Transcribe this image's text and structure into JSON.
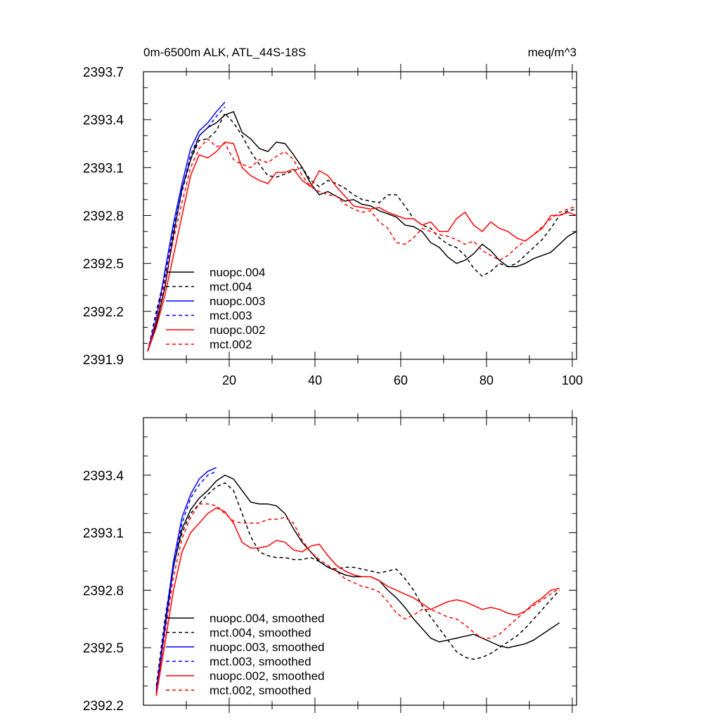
{
  "chart_data": [
    {
      "type": "line",
      "title_left": "0m-6500m ALK, ATL_44S-18S",
      "title_right": "meq/m^3",
      "xlabel": "",
      "ylabel": "",
      "xlim": [
        0,
        101
      ],
      "ylim": [
        2391.9,
        2393.7
      ],
      "xticks": [
        "20",
        "40",
        "60",
        "80",
        "100"
      ],
      "yticks": [
        "2391.9",
        "2392.2",
        "2392.5",
        "2392.8",
        "2393.1",
        "2393.4",
        "2393.7"
      ],
      "legend_position": "lower-left",
      "series": [
        {
          "name": "nuopc.004",
          "color": "#000000",
          "dash": "solid",
          "x": [
            1,
            3,
            5,
            7,
            9,
            11,
            13,
            15,
            17,
            19,
            21,
            23,
            25,
            27,
            29,
            31,
            33,
            35,
            37,
            39,
            41,
            43,
            45,
            47,
            49,
            51,
            53,
            55,
            57,
            59,
            61,
            63,
            65,
            67,
            69,
            71,
            73,
            75,
            77,
            79,
            81,
            83,
            85,
            87,
            89,
            91,
            93,
            95,
            97,
            99,
            101
          ],
          "y": [
            2391.95,
            2392.12,
            2392.35,
            2392.68,
            2392.97,
            2393.15,
            2393.3,
            2393.35,
            2393.38,
            2393.43,
            2393.45,
            2393.32,
            2393.28,
            2393.22,
            2393.2,
            2393.26,
            2393.25,
            2393.18,
            2393.1,
            2393.0,
            2392.93,
            2392.95,
            2392.92,
            2392.89,
            2392.9,
            2392.87,
            2392.86,
            2392.83,
            2392.81,
            2392.79,
            2392.74,
            2392.73,
            2392.7,
            2392.63,
            2392.6,
            2392.54,
            2392.5,
            2392.52,
            2392.56,
            2392.62,
            2392.58,
            2392.52,
            2392.48,
            2392.48,
            2392.5,
            2392.53,
            2392.55,
            2392.57,
            2392.62,
            2392.67,
            2392.7
          ]
        },
        {
          "name": "mct.004",
          "color": "#000000",
          "dash": "dashed",
          "x": [
            1,
            3,
            5,
            7,
            9,
            11,
            13,
            15,
            17,
            19,
            21,
            23,
            25,
            27,
            29,
            31,
            33,
            35,
            37,
            39,
            41,
            43,
            45,
            47,
            49,
            51,
            53,
            55,
            57,
            59,
            61,
            63,
            65,
            67,
            69,
            71,
            73,
            75,
            77,
            79,
            81,
            83,
            85,
            87,
            89,
            91,
            93,
            95,
            97,
            99,
            101
          ],
          "y": [
            2391.95,
            2392.2,
            2392.42,
            2392.7,
            2392.95,
            2393.15,
            2393.27,
            2393.28,
            2393.33,
            2393.44,
            2393.38,
            2393.3,
            2393.2,
            2393.12,
            2393.05,
            2393.04,
            2393.06,
            2393.08,
            2393.1,
            2393.02,
            2392.98,
            2393.02,
            2393.0,
            2392.97,
            2392.93,
            2392.9,
            2392.89,
            2392.88,
            2392.93,
            2392.93,
            2392.86,
            2392.78,
            2392.74,
            2392.72,
            2392.66,
            2392.62,
            2392.6,
            2392.55,
            2392.47,
            2392.42,
            2392.45,
            2392.5,
            2392.48,
            2392.5,
            2392.55,
            2392.6,
            2392.65,
            2392.72,
            2392.8,
            2392.83,
            2392.84
          ]
        },
        {
          "name": "nuopc.003",
          "color": "#0000ff",
          "dash": "solid",
          "x": [
            1,
            3,
            5,
            7,
            9,
            11,
            13,
            15,
            17,
            19
          ],
          "y": [
            2391.95,
            2392.15,
            2392.45,
            2392.75,
            2393.0,
            2393.22,
            2393.33,
            2393.38,
            2393.45,
            2393.51
          ]
        },
        {
          "name": "mct.003",
          "color": "#0000ff",
          "dash": "dashed",
          "x": [
            1,
            3,
            5,
            7,
            9,
            11,
            13,
            15,
            17,
            19
          ],
          "y": [
            2391.95,
            2392.18,
            2392.4,
            2392.72,
            2392.96,
            2393.18,
            2393.3,
            2393.35,
            2393.42,
            2393.48
          ]
        },
        {
          "name": "nuopc.002",
          "color": "#ff0000",
          "dash": "solid",
          "x": [
            1,
            3,
            5,
            7,
            9,
            11,
            13,
            15,
            17,
            19,
            21,
            23,
            25,
            27,
            29,
            31,
            33,
            35,
            37,
            39,
            41,
            43,
            45,
            47,
            49,
            51,
            53,
            55,
            57,
            59,
            61,
            63,
            65,
            67,
            69,
            71,
            73,
            75,
            77,
            79,
            81,
            83,
            85,
            87,
            89,
            91,
            93,
            95,
            97,
            99,
            101
          ],
          "y": [
            2391.95,
            2392.1,
            2392.3,
            2392.55,
            2392.8,
            2393.05,
            2393.18,
            2393.16,
            2393.2,
            2393.26,
            2393.25,
            2393.1,
            2393.05,
            2393.02,
            2393.0,
            2393.07,
            2393.07,
            2393.09,
            2393.02,
            2392.98,
            2393.08,
            2393.05,
            2392.98,
            2392.92,
            2392.86,
            2392.85,
            2392.84,
            2392.85,
            2392.82,
            2392.8,
            2392.78,
            2392.78,
            2392.74,
            2392.76,
            2392.7,
            2392.7,
            2392.78,
            2392.82,
            2392.74,
            2392.7,
            2392.76,
            2392.72,
            2392.7,
            2392.66,
            2392.64,
            2392.68,
            2392.72,
            2392.8,
            2392.8,
            2392.82,
            2392.8
          ]
        },
        {
          "name": "mct.002",
          "color": "#ff0000",
          "dash": "dashed",
          "x": [
            1,
            3,
            5,
            7,
            9,
            11,
            13,
            15,
            17,
            19,
            21,
            23,
            25,
            27,
            29,
            31,
            33,
            35,
            37,
            39,
            41,
            43,
            45,
            47,
            49,
            51,
            53,
            55,
            57,
            59,
            61,
            63,
            65,
            67,
            69,
            71,
            73,
            75,
            77,
            79,
            81,
            83,
            85,
            87,
            89,
            91,
            93,
            95,
            97,
            99,
            101
          ],
          "y": [
            2391.95,
            2392.15,
            2392.38,
            2392.65,
            2392.88,
            2393.1,
            2393.22,
            2393.28,
            2393.23,
            2393.25,
            2393.15,
            2393.12,
            2393.1,
            2393.15,
            2393.13,
            2393.17,
            2393.2,
            2393.15,
            2393.05,
            2392.98,
            2392.95,
            2392.93,
            2392.92,
            2392.87,
            2392.84,
            2392.82,
            2392.83,
            2392.76,
            2392.72,
            2392.63,
            2392.62,
            2392.66,
            2392.72,
            2392.7,
            2392.68,
            2392.67,
            2392.65,
            2392.62,
            2392.64,
            2392.58,
            2392.55,
            2392.52,
            2392.55,
            2392.6,
            2392.64,
            2392.68,
            2392.73,
            2392.78,
            2392.82,
            2392.84,
            2392.86
          ]
        }
      ]
    },
    {
      "type": "line",
      "xlabel": "",
      "ylabel": "",
      "xlim": [
        0,
        101
      ],
      "ylim": [
        2392.2,
        2393.7
      ],
      "xticks": [],
      "yticks": [
        "2392.2",
        "2392.5",
        "2392.8",
        "2393.1",
        "2393.4"
      ],
      "legend_position": "lower-left",
      "series": [
        {
          "name": "nuopc.004, smoothed",
          "color": "#000000",
          "dash": "solid",
          "x": [
            3,
            5,
            7,
            9,
            11,
            13,
            15,
            17,
            19,
            21,
            23,
            25,
            27,
            29,
            31,
            33,
            35,
            37,
            39,
            41,
            43,
            45,
            47,
            49,
            51,
            53,
            55,
            57,
            59,
            61,
            63,
            65,
            67,
            69,
            71,
            73,
            75,
            77,
            79,
            81,
            83,
            85,
            87,
            89,
            91,
            93,
            95,
            97
          ],
          "y": [
            2392.25,
            2392.6,
            2392.92,
            2393.12,
            2393.22,
            2393.28,
            2393.32,
            2393.37,
            2393.4,
            2393.38,
            2393.32,
            2393.26,
            2393.25,
            2393.25,
            2393.24,
            2393.2,
            2393.12,
            2393.05,
            2393.0,
            2392.95,
            2392.92,
            2392.9,
            2392.88,
            2392.87,
            2392.87,
            2392.87,
            2392.85,
            2392.8,
            2392.76,
            2392.71,
            2392.65,
            2392.6,
            2392.55,
            2392.53,
            2392.54,
            2392.55,
            2392.56,
            2392.57,
            2392.55,
            2392.53,
            2392.51,
            2392.5,
            2392.51,
            2392.52,
            2392.54,
            2392.57,
            2392.6,
            2392.63
          ]
        },
        {
          "name": "mct.004, smoothed",
          "color": "#000000",
          "dash": "dashed",
          "x": [
            3,
            5,
            7,
            9,
            11,
            13,
            15,
            17,
            19,
            21,
            23,
            25,
            27,
            29,
            31,
            33,
            35,
            37,
            39,
            41,
            43,
            45,
            47,
            49,
            51,
            53,
            55,
            57,
            59,
            61,
            63,
            65,
            67,
            69,
            71,
            73,
            75,
            77,
            79,
            81,
            83,
            85,
            87,
            89,
            91,
            93,
            95,
            97
          ],
          "y": [
            2392.3,
            2392.65,
            2392.93,
            2393.1,
            2393.2,
            2393.25,
            2393.3,
            2393.34,
            2393.36,
            2393.32,
            2393.2,
            2393.08,
            2393.0,
            2392.98,
            2392.97,
            2392.97,
            2392.96,
            2392.96,
            2392.97,
            2392.95,
            2392.92,
            2392.91,
            2392.92,
            2392.92,
            2392.91,
            2392.9,
            2392.89,
            2392.9,
            2392.91,
            2392.86,
            2392.8,
            2392.72,
            2392.66,
            2392.6,
            2392.54,
            2392.48,
            2392.45,
            2392.44,
            2392.45,
            2392.47,
            2392.5,
            2392.53,
            2392.56,
            2392.6,
            2392.65,
            2392.7,
            2392.75,
            2392.8
          ]
        },
        {
          "name": "nuopc.003, smoothed",
          "color": "#0000ff",
          "dash": "solid",
          "x": [
            3,
            5,
            7,
            9,
            11,
            13,
            15,
            17
          ],
          "y": [
            2392.27,
            2392.62,
            2392.95,
            2393.18,
            2393.3,
            2393.38,
            2393.42,
            2393.44
          ]
        },
        {
          "name": "mct.003, smoothed",
          "color": "#0000ff",
          "dash": "dashed",
          "x": [
            3,
            5,
            7,
            9,
            11,
            13,
            15,
            17
          ],
          "y": [
            2392.28,
            2392.6,
            2392.92,
            2393.15,
            2393.28,
            2393.35,
            2393.4,
            2393.42
          ]
        },
        {
          "name": "nuopc.002, smoothed",
          "color": "#ff0000",
          "dash": "solid",
          "x": [
            3,
            5,
            7,
            9,
            11,
            13,
            15,
            17,
            19,
            21,
            23,
            25,
            27,
            29,
            31,
            33,
            35,
            37,
            39,
            41,
            43,
            45,
            47,
            49,
            51,
            53,
            55,
            57,
            59,
            61,
            63,
            65,
            67,
            69,
            71,
            73,
            75,
            77,
            79,
            81,
            83,
            85,
            87,
            89,
            91,
            93,
            95,
            97
          ],
          "y": [
            2392.25,
            2392.52,
            2392.8,
            2393.0,
            2393.1,
            2393.15,
            2393.2,
            2393.23,
            2393.21,
            2393.15,
            2393.05,
            2393.02,
            2393.02,
            2393.03,
            2393.06,
            2393.05,
            2393.01,
            2393.0,
            2393.03,
            2393.04,
            2392.98,
            2392.93,
            2392.9,
            2392.88,
            2392.87,
            2392.87,
            2392.85,
            2392.82,
            2392.8,
            2392.78,
            2392.76,
            2392.73,
            2392.7,
            2392.72,
            2392.74,
            2392.75,
            2392.74,
            2392.72,
            2392.7,
            2392.71,
            2392.7,
            2392.68,
            2392.67,
            2392.69,
            2392.73,
            2392.76,
            2392.8,
            2392.81
          ]
        },
        {
          "name": "mct.002, smoothed",
          "color": "#ff0000",
          "dash": "dashed",
          "x": [
            3,
            5,
            7,
            9,
            11,
            13,
            15,
            17,
            19,
            21,
            23,
            25,
            27,
            29,
            31,
            33,
            35,
            37,
            39,
            41,
            43,
            45,
            47,
            49,
            51,
            53,
            55,
            57,
            59,
            61,
            63,
            65,
            67,
            69,
            71,
            73,
            75,
            77,
            79,
            81,
            83,
            85,
            87,
            89,
            91,
            93,
            95,
            97
          ],
          "y": [
            2392.26,
            2392.57,
            2392.87,
            2393.07,
            2393.18,
            2393.25,
            2393.25,
            2393.24,
            2393.2,
            2393.16,
            2393.15,
            2393.15,
            2393.15,
            2393.17,
            2393.17,
            2393.18,
            2393.15,
            2393.06,
            2393.0,
            2392.96,
            2392.93,
            2392.9,
            2392.86,
            2392.84,
            2392.82,
            2392.81,
            2392.79,
            2392.74,
            2392.68,
            2392.65,
            2392.67,
            2392.7,
            2392.7,
            2392.68,
            2392.66,
            2392.65,
            2392.62,
            2392.58,
            2392.55,
            2392.55,
            2392.57,
            2392.61,
            2392.65,
            2392.69,
            2392.72,
            2392.75,
            2392.78,
            2392.81
          ]
        }
      ]
    }
  ]
}
